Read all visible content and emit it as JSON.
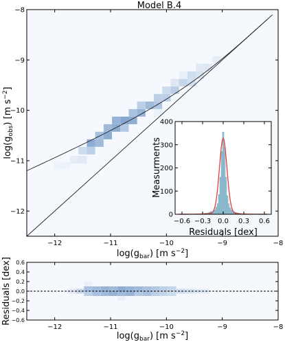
{
  "figure": {
    "title": "Model B.4"
  },
  "chart_data": [
    {
      "id": "rar-main",
      "type": "heatmap",
      "title": "Model B.4",
      "xlabel": "log(g_bar) [m s^-2]",
      "ylabel": "log(g_obs) [m s^-2]",
      "xlim": [
        -12.5,
        -8
      ],
      "ylim": [
        -12.5,
        -8
      ],
      "xticks": [
        -12,
        -11,
        -10,
        -9,
        -8
      ],
      "yticks": [
        -12,
        -11,
        -10,
        -9,
        -8
      ],
      "xtick_labels": [
        "−12",
        "−11",
        "−10",
        "−9",
        "−8"
      ],
      "ytick_labels": [
        "−12",
        "−11",
        "−10",
        "−9",
        "−8"
      ],
      "lines": [
        {
          "kind": "one-to-one",
          "description": "g_obs = g_bar"
        },
        {
          "kind": "fit",
          "description": "radial acceleration relation, g_dagger = 1.2e-10"
        }
      ],
      "density": [
        [
          -11.65,
          -10.98,
          0.08
        ],
        [
          -11.5,
          -10.98,
          0.1
        ],
        [
          -11.5,
          -10.8,
          0.2
        ],
        [
          -11.35,
          -10.65,
          0.55
        ],
        [
          -11.35,
          -10.8,
          0.3
        ],
        [
          -11.2,
          -10.65,
          0.45
        ],
        [
          -11.2,
          -10.5,
          0.4
        ],
        [
          -11.05,
          -10.5,
          0.55
        ],
        [
          -11.05,
          -10.35,
          0.45
        ],
        [
          -10.9,
          -10.35,
          0.55
        ],
        [
          -10.9,
          -10.2,
          0.5
        ],
        [
          -10.75,
          -10.35,
          0.35
        ],
        [
          -10.75,
          -10.2,
          0.6
        ],
        [
          -10.6,
          -10.2,
          0.55
        ],
        [
          -10.6,
          -10.05,
          0.4
        ],
        [
          -10.45,
          -10.05,
          0.5
        ],
        [
          -10.45,
          -9.9,
          0.3
        ],
        [
          -10.3,
          -9.9,
          0.45
        ],
        [
          -10.15,
          -9.9,
          0.35
        ],
        [
          -10.15,
          -9.75,
          0.3
        ],
        [
          -10.0,
          -9.75,
          0.3
        ],
        [
          -10.0,
          -9.6,
          0.2
        ],
        [
          -9.85,
          -9.6,
          0.3
        ],
        [
          -9.85,
          -9.45,
          0.12
        ],
        [
          -9.7,
          -9.45,
          0.25
        ],
        [
          -9.55,
          -9.45,
          0.18
        ],
        [
          -9.55,
          -9.3,
          0.2
        ],
        [
          -9.4,
          -9.3,
          0.15
        ],
        [
          -9.4,
          -9.15,
          0.1
        ],
        [
          -9.25,
          -9.15,
          0.12
        ],
        [
          -9.1,
          -9.0,
          0.08
        ],
        [
          -11.8,
          -11.1,
          0.04
        ],
        [
          -11.95,
          -11.1,
          0.03
        ],
        [
          -10.15,
          -10.05,
          0.05
        ],
        [
          -9.7,
          -9.3,
          0.06
        ]
      ]
    },
    {
      "id": "residual-hist-inset",
      "type": "bar",
      "title": "",
      "xlabel": "Residuals [dex]",
      "ylabel": "Measurments",
      "xlim": [
        -0.7,
        0.7
      ],
      "ylim": [
        0,
        400
      ],
      "xticks": [
        -0.6,
        -0.3,
        0.0,
        0.3,
        0.6
      ],
      "yticks": [
        0,
        100,
        200,
        300,
        400
      ],
      "xtick_labels": [
        "−0.6",
        "−0.3",
        "0.0",
        "0.3",
        "0.6"
      ],
      "ytick_labels": [
        "0",
        "100",
        "200",
        "300",
        "400"
      ],
      "bin_width": 0.02,
      "bin_centers": [
        -0.3,
        -0.28,
        -0.26,
        -0.24,
        -0.22,
        -0.2,
        -0.18,
        -0.16,
        -0.14,
        -0.12,
        -0.1,
        -0.08,
        -0.06,
        -0.04,
        -0.02,
        0.0,
        0.02,
        0.04,
        0.06,
        0.08,
        0.1,
        0.12,
        0.14,
        0.16,
        0.18,
        0.2,
        0.22,
        0.24,
        0.26,
        0.28,
        0.3
      ],
      "values": [
        3,
        2,
        5,
        4,
        6,
        8,
        12,
        10,
        14,
        18,
        30,
        45,
        85,
        160,
        270,
        355,
        290,
        160,
        80,
        45,
        28,
        18,
        12,
        10,
        8,
        6,
        5,
        4,
        3,
        2,
        2
      ],
      "fit": {
        "kind": "gaussian",
        "amplitude": 320,
        "mean": 0.0,
        "sigma": 0.055
      }
    },
    {
      "id": "residuals-panel",
      "type": "heatmap",
      "title": "",
      "xlabel": "log(g_bar) [m s^-2]",
      "ylabel": "Residuals [dex]",
      "xlim": [
        -12.5,
        -8
      ],
      "ylim": [
        -0.6,
        0.6
      ],
      "xticks": [
        -12,
        -11,
        -10,
        -9,
        -8
      ],
      "yticks": [
        -0.6,
        -0.4,
        -0.2,
        0.0,
        0.2,
        0.4,
        0.6
      ],
      "xtick_labels": [
        "−12",
        "−11",
        "−10",
        "−9",
        "−8"
      ],
      "ytick_labels": [
        "−0.6",
        "−0.4",
        "−0.2",
        "0.0",
        "0.2",
        "0.4",
        "0.6"
      ],
      "zero_line": 0.0,
      "density": [
        [
          -11.55,
          0.0,
          0.25
        ],
        [
          -11.4,
          0.05,
          0.4
        ],
        [
          -11.4,
          -0.05,
          0.3
        ],
        [
          -11.25,
          0.05,
          0.45
        ],
        [
          -11.25,
          -0.05,
          0.4
        ],
        [
          -11.1,
          0.05,
          0.5
        ],
        [
          -11.1,
          -0.05,
          0.45
        ],
        [
          -10.95,
          0.05,
          0.45
        ],
        [
          -10.95,
          -0.05,
          0.5
        ],
        [
          -10.8,
          0.05,
          0.55
        ],
        [
          -10.8,
          -0.05,
          0.45
        ],
        [
          -10.65,
          0.05,
          0.5
        ],
        [
          -10.65,
          -0.05,
          0.5
        ],
        [
          -10.5,
          0.05,
          0.45
        ],
        [
          -10.5,
          -0.05,
          0.35
        ],
        [
          -10.35,
          0.05,
          0.4
        ],
        [
          -10.35,
          -0.05,
          0.4
        ],
        [
          -10.2,
          0.05,
          0.35
        ],
        [
          -10.2,
          -0.05,
          0.3
        ],
        [
          -10.05,
          0.05,
          0.3
        ],
        [
          -10.05,
          -0.05,
          0.25
        ],
        [
          -9.9,
          0.05,
          0.25
        ],
        [
          -9.9,
          -0.05,
          0.2
        ],
        [
          -9.75,
          0.0,
          0.2
        ],
        [
          -9.6,
          0.0,
          0.15
        ],
        [
          -9.45,
          0.0,
          0.12
        ],
        [
          -9.3,
          0.0,
          0.08
        ],
        [
          -11.7,
          0.0,
          0.1
        ],
        [
          -11.4,
          0.15,
          0.06
        ],
        [
          -10.8,
          -0.15,
          0.06
        ]
      ]
    }
  ],
  "colors": {
    "background_bin": "#f3f8fd",
    "dense_bin": "#3a6fb0",
    "fit_line": "#000000",
    "hist_bar": "#9ccbe0",
    "hist_fit": "#e0403a"
  }
}
